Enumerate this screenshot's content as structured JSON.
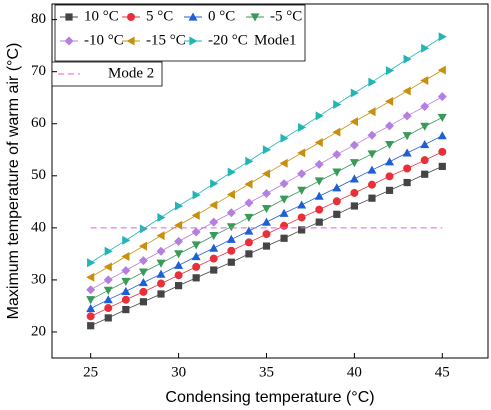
{
  "chart_data": {
    "type": "line",
    "x_label": "Condensing temperature (°C)",
    "y_label": "Maximum temperature of warm air (°C)",
    "x": [
      25,
      26,
      27,
      28,
      29,
      30,
      31,
      32,
      33,
      34,
      35,
      36,
      37,
      38,
      39,
      40,
      41,
      42,
      43,
      44,
      45
    ],
    "series": [
      {
        "name": "10 °C",
        "color": "#454545",
        "marker": "square",
        "values": [
          21.2,
          22.7,
          24.3,
          25.8,
          27.3,
          28.9,
          30.4,
          31.9,
          33.4,
          35.0,
          36.5,
          38.0,
          39.6,
          41.1,
          42.6,
          44.2,
          45.7,
          47.2,
          48.7,
          50.3,
          51.8
        ]
      },
      {
        "name": "5 °C",
        "color": "#e8303a",
        "marker": "circle",
        "values": [
          23.0,
          24.6,
          26.2,
          27.7,
          29.3,
          30.9,
          32.5,
          34.1,
          35.6,
          37.2,
          38.8,
          40.4,
          42.0,
          43.5,
          45.1,
          46.7,
          48.3,
          49.9,
          51.4,
          53.0,
          54.6
        ]
      },
      {
        "name": "0 °C",
        "color": "#1f5fd6",
        "marker": "triangle-up",
        "values": [
          24.5,
          26.2,
          27.8,
          29.5,
          31.1,
          32.8,
          34.5,
          36.1,
          37.8,
          39.4,
          41.1,
          42.8,
          44.4,
          46.1,
          47.7,
          49.4,
          51.1,
          52.7,
          54.4,
          56.0,
          57.7
        ]
      },
      {
        "name": "-5 °C",
        "color": "#3a9a5a",
        "marker": "triangle-down",
        "values": [
          26.2,
          28.0,
          29.7,
          31.5,
          33.2,
          35.0,
          36.7,
          38.5,
          40.2,
          42.0,
          43.7,
          45.5,
          47.2,
          49.0,
          50.7,
          52.5,
          54.2,
          56.0,
          57.7,
          59.5,
          61.2
        ]
      },
      {
        "name": "-10 °C",
        "color": "#b57fe0",
        "marker": "diamond",
        "values": [
          28.1,
          30.0,
          31.8,
          33.7,
          35.5,
          37.4,
          39.2,
          41.1,
          42.9,
          44.8,
          46.6,
          48.5,
          50.4,
          52.2,
          54.1,
          55.9,
          57.8,
          59.6,
          61.5,
          63.3,
          65.2
        ]
      },
      {
        "name": "-15 °C",
        "color": "#c8900e",
        "marker": "triangle-left",
        "values": [
          30.5,
          32.5,
          34.5,
          36.5,
          38.5,
          40.5,
          42.4,
          44.4,
          46.4,
          48.4,
          50.4,
          52.4,
          54.4,
          56.4,
          58.4,
          60.4,
          62.3,
          64.3,
          66.3,
          68.3,
          70.3
        ]
      },
      {
        "name": "-20 °C",
        "color": "#21b5b5",
        "marker": "triangle-right",
        "values": [
          33.3,
          35.5,
          37.6,
          39.8,
          42.0,
          44.2,
          46.3,
          48.5,
          50.7,
          52.8,
          55.0,
          57.2,
          59.3,
          61.5,
          63.7,
          65.9,
          68.0,
          70.2,
          72.4,
          74.5,
          76.7
        ]
      }
    ],
    "legend_group_label": "Mode1",
    "reference_line": {
      "name": "Mode 2",
      "color": "#e060e0",
      "style": "dashed",
      "x": [
        25,
        45
      ],
      "values": [
        40,
        40
      ]
    },
    "xlim": [
      22.8,
      47.6
    ],
    "xticks": [
      25,
      30,
      35,
      40,
      45
    ],
    "ylim": [
      15,
      83
    ],
    "yticks": [
      20,
      30,
      40,
      50,
      60,
      70,
      80
    ]
  }
}
